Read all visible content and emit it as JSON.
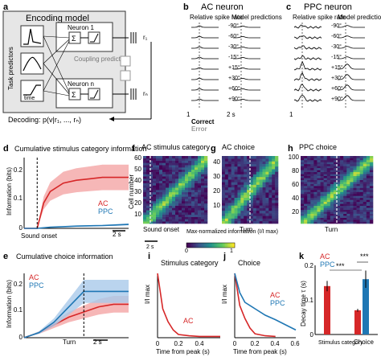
{
  "panels": {
    "a": {
      "letter": "a",
      "title": "Encoding model",
      "side_label": "Task predictors",
      "time_label": "time",
      "neuron1": "Neuron 1",
      "neuronn": "Neuron n",
      "coupling": "Coupling predictors",
      "decoding": "Decoding: p(v|r₁, ..., rₙ)",
      "r1": "r₁",
      "rn": "rₙ",
      "sum": "Σ"
    },
    "b": {
      "letter": "b",
      "title": "AC neuron",
      "col1": "Relative spike rate",
      "col2": "Model predictions",
      "angles": [
        "-90°",
        "-60°",
        "-30°",
        "-15°",
        "+15°",
        "+30°",
        "+60°",
        "+90°"
      ],
      "scale_y": "1",
      "scale_time": "2 s",
      "correct": "Correct",
      "error": "Error"
    },
    "c": {
      "letter": "c",
      "title": "PPC neuron",
      "col1": "Relative spike rate",
      "col2": "Model predictions",
      "scale_y": "1"
    },
    "d": {
      "letter": "d",
      "title": "Cumulative stimulus category information",
      "ylabel": "Information (bits)",
      "ticks_y": [
        "0.2",
        "0.1",
        "0"
      ],
      "onset": "Sound onset",
      "scale": "2 s",
      "legend_ac": "AC",
      "legend_ppc": "PPC"
    },
    "e": {
      "letter": "e",
      "title": "Cumulative choice information",
      "ylabel": "Information (bits)",
      "ticks_y": [
        "0.2",
        "0.1",
        "0"
      ],
      "turn": "Turn",
      "scale": "2 s",
      "legend_ac": "AC",
      "legend_ppc": "PPC"
    },
    "f": {
      "letter": "f",
      "title": "AC stimulus category",
      "ylabel": "Cell number",
      "ticks_y": [
        "60",
        "50",
        "40",
        "30",
        "20",
        "10"
      ],
      "sound": "Sound onset",
      "scale": "2 s",
      "cbar_label": "Max-normalized information (I/I max)",
      "cbar_0": "0",
      "cbar_1": "1"
    },
    "g": {
      "letter": "g",
      "title": "AC choice",
      "ticks_y": [
        "40",
        "30",
        "20",
        "10"
      ],
      "turn": "Turn"
    },
    "h": {
      "letter": "h",
      "title": "PPC choice",
      "ticks_y": [
        "100",
        "80",
        "60",
        "40",
        "20"
      ],
      "turn": "Turn"
    },
    "i": {
      "letter": "i",
      "title": "Stimulus category",
      "ylabel": "I/I max",
      "xlabel": "Time from peak (s)",
      "ticks_x": [
        "0",
        "0.2",
        "0.4"
      ],
      "legend_ac": "AC"
    },
    "j": {
      "letter": "j",
      "title": "Choice",
      "ylabel": "I/I max",
      "xlabel": "Time from peak (s)",
      "ticks_x": [
        "0",
        "0.2",
        "0.4",
        "0.6"
      ],
      "legend_ac": "AC",
      "legend_ppc": "PPC"
    },
    "k": {
      "letter": "k",
      "ylabel": "Decay time τ (s)",
      "ticks_y": [
        "0.2",
        "0.1",
        "0"
      ],
      "cat1": "Stimulus category",
      "cat2": "Choice",
      "sig": "***",
      "legend_ac": "AC",
      "legend_ppc": "PPC"
    }
  },
  "colors": {
    "ac": "#d62728",
    "ppc": "#1f77b4",
    "ac_band": "#f4a5a5",
    "ppc_band": "#a9c9ea",
    "box": "#e6e6e6",
    "box_dark": "#c8c8c8"
  },
  "chart_data": [
    {
      "type": "line",
      "panel": "d",
      "series": [
        {
          "name": "AC",
          "values_x": [
            -1,
            0,
            0.5,
            1,
            2,
            3,
            4,
            5,
            6,
            7
          ],
          "values": [
            0,
            0,
            0.09,
            0.13,
            0.16,
            0.17,
            0.175,
            0.18,
            0.18,
            0.18
          ]
        },
        {
          "name": "PPC",
          "values_x": [
            -1,
            0,
            1,
            2,
            3,
            4,
            5,
            6,
            7
          ],
          "values": [
            0,
            0,
            0.004,
            0.006,
            0.008,
            0.009,
            0.01,
            0.012,
            0.014
          ]
        }
      ],
      "ylim": [
        0,
        0.25
      ]
    },
    {
      "type": "line",
      "panel": "e",
      "series": [
        {
          "name": "AC",
          "values_x": [
            -4,
            -3,
            -2,
            -1,
            0,
            1,
            2,
            3
          ],
          "values": [
            0,
            0.02,
            0.05,
            0.08,
            0.1,
            0.12,
            0.13,
            0.13
          ]
        },
        {
          "name": "PPC",
          "values_x": [
            -4,
            -3,
            -2,
            -1,
            0,
            1,
            2,
            3
          ],
          "values": [
            0,
            0.02,
            0.06,
            0.12,
            0.18,
            0.18,
            0.18,
            0.18
          ]
        }
      ],
      "ylim": [
        0,
        0.25
      ]
    },
    {
      "type": "line",
      "panel": "i",
      "series": [
        {
          "name": "AC",
          "values_x": [
            0,
            0.05,
            0.1,
            0.15,
            0.2,
            0.3,
            0.4,
            0.6
          ],
          "values": [
            1,
            0.45,
            0.25,
            0.12,
            0.05,
            0.03,
            0.02,
            0.02
          ]
        }
      ]
    },
    {
      "type": "line",
      "panel": "j",
      "series": [
        {
          "name": "AC",
          "values_x": [
            0,
            0.05,
            0.1,
            0.15,
            0.2,
            0.3,
            0.4
          ],
          "values": [
            1,
            0.5,
            0.3,
            0.15,
            0.06,
            0.03,
            0.02
          ]
        },
        {
          "name": "PPC",
          "values_x": [
            0,
            0.05,
            0.1,
            0.2,
            0.3,
            0.4,
            0.5,
            0.6
          ],
          "values": [
            1,
            0.7,
            0.55,
            0.45,
            0.35,
            0.28,
            0.2,
            0.12
          ]
        }
      ]
    },
    {
      "type": "bar",
      "panel": "k",
      "categories": [
        "Stimulus category",
        "Choice"
      ],
      "series": [
        {
          "name": "AC",
          "values": [
            0.14,
            0.07
          ],
          "err": [
            0.015,
            0.004
          ]
        },
        {
          "name": "PPC",
          "values": [
            0,
            0.16
          ],
          "err": [
            0,
            0.025
          ]
        }
      ],
      "ylim": [
        0,
        0.2
      ]
    }
  ]
}
